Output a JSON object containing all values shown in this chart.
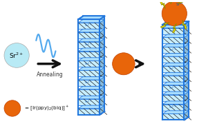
{
  "bg_color": "#ffffff",
  "sr_circle_color": "#b8eaf5",
  "sr_text": "Sr$^{2+}$",
  "orange_color": "#e8650a",
  "frame_color": "#2277dd",
  "shelf_color": "#c8eeff",
  "shelf_top_color": "#a8ddff",
  "hatch_color": "#222222",
  "arrow_color": "#111111",
  "annealing_text": "Annealing",
  "legend_text": "= [Ir(ppy)$_2$(biq)]$^+$",
  "lightning_color": "#ffee00",
  "wave_color": "#55aaee",
  "fig_width": 3.14,
  "fig_height": 1.89,
  "xlim": [
    0,
    10
  ],
  "ylim": [
    0,
    6
  ]
}
